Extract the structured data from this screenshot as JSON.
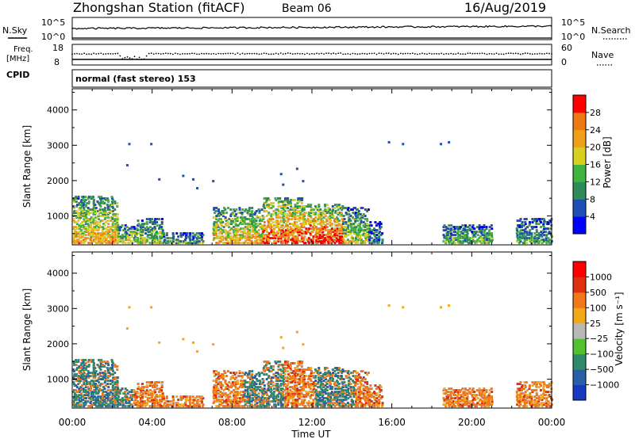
{
  "header": {
    "station": "Zhongshan Station (fitACF)",
    "beam": "Beam 06",
    "date": "16/Aug/2019"
  },
  "nsky_panel": {
    "left_label": "N.Sky",
    "right_label": "N.Search",
    "left_ticks": [
      "10^5",
      "10^0"
    ],
    "right_ticks": [
      "10^5",
      "10^0"
    ]
  },
  "freq_panel": {
    "left_label_line1": "Freq.",
    "left_label_line2": "[MHz]",
    "right_label": "Nave",
    "left_ticks": [
      "18",
      "8"
    ],
    "right_ticks": [
      "60",
      "0"
    ]
  },
  "cpid": {
    "label": "CPID",
    "value": "normal (fast stereo) 153"
  },
  "colors": {
    "power": [
      "#0000ff",
      "#1f4fb4",
      "#2e8c5a",
      "#3fb43f",
      "#d8d020",
      "#f0a018",
      "#f07810",
      "#ff0000"
    ],
    "velocity": [
      "#1838c0",
      "#2a5fa8",
      "#2e8a6a",
      "#52c030",
      "#b8b8b8",
      "#f0a818",
      "#f07818",
      "#e03010",
      "#ff0000"
    ]
  },
  "chart_data": [
    {
      "type": "heatmap",
      "name": "Power",
      "ylabel": "Slant Range [km]",
      "ylim": [
        180,
        4600
      ],
      "yticks": [
        1000,
        2000,
        3000,
        4000
      ],
      "xlim": [
        0,
        24
      ],
      "colorbar_label": "Power [dB]",
      "colorbar_ticks": [
        "28",
        "24",
        "20",
        "16",
        "12",
        "8",
        "4"
      ],
      "colorbar_range": [
        0,
        32
      ],
      "scatter_regions": [
        {
          "t": [
            0.0,
            2.2
          ],
          "r": [
            200,
            1550
          ],
          "level": 0.55
        },
        {
          "t": [
            2.2,
            3.2
          ],
          "r": [
            200,
            700
          ],
          "level": 0.45
        },
        {
          "t": [
            3.2,
            4.5
          ],
          "r": [
            200,
            900
          ],
          "level": 0.4
        },
        {
          "t": [
            4.5,
            6.5
          ],
          "r": [
            200,
            500
          ],
          "level": 0.3
        },
        {
          "t": [
            7.0,
            9.5
          ],
          "r": [
            200,
            1200
          ],
          "level": 0.55
        },
        {
          "t": [
            9.5,
            11.5
          ],
          "r": [
            200,
            1500
          ],
          "level": 0.7
        },
        {
          "t": [
            11.5,
            13.5
          ],
          "r": [
            200,
            1300
          ],
          "level": 0.75
        },
        {
          "t": [
            13.5,
            14.8
          ],
          "r": [
            200,
            1200
          ],
          "level": 0.45
        },
        {
          "t": [
            14.8,
            15.5
          ],
          "r": [
            200,
            800
          ],
          "level": 0.25
        },
        {
          "t": [
            18.5,
            21.0
          ],
          "r": [
            200,
            700
          ],
          "level": 0.35
        },
        {
          "t": [
            22.2,
            24.0
          ],
          "r": [
            200,
            900
          ],
          "level": 0.3
        }
      ]
    },
    {
      "type": "heatmap",
      "name": "Velocity",
      "ylabel": "Slant Range [km]",
      "ylim": [
        180,
        4600
      ],
      "yticks": [
        1000,
        2000,
        3000,
        4000
      ],
      "xlim": [
        0,
        24
      ],
      "xlabel": "Time UT",
      "xticks": [
        "00:00",
        "04:00",
        "08:00",
        "12:00",
        "16:00",
        "20:00",
        "00:00"
      ],
      "colorbar_label": "Velocity [m s⁻¹]",
      "colorbar_ticks": [
        "1000",
        "500",
        "100",
        "25",
        "−25",
        "−100",
        "−500",
        "−1000"
      ],
      "colorbar_range": [
        -1000,
        1000
      ]
    }
  ]
}
